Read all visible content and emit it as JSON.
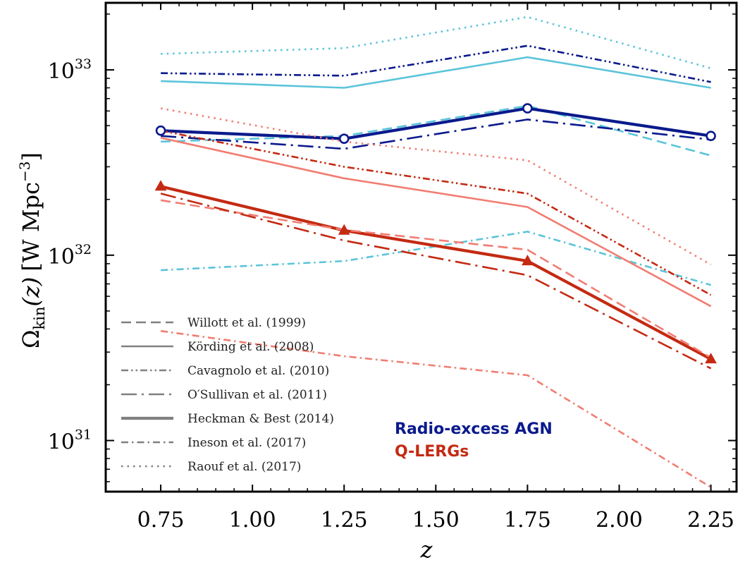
{
  "chart_data": {
    "type": "line",
    "xlabel": "z",
    "ylabel_main": "Ω",
    "ylabel_sub": "kin",
    "ylabel_arg": "(z)",
    "ylabel_units": "[W Mpc",
    "ylabel_exp": "−3",
    "ylabel_close": "]",
    "xlim": [
      0.6,
      2.32
    ],
    "ylim": [
      5.3e+30,
      2.3e+33
    ],
    "yscale": "log",
    "x": [
      0.75,
      1.25,
      1.75,
      2.25
    ],
    "x_ticks": [
      {
        "v": 0.75,
        "label": "0.75"
      },
      {
        "v": 1.0,
        "label": "1.00"
      },
      {
        "v": 1.25,
        "label": "1.25"
      },
      {
        "v": 1.5,
        "label": "1.50"
      },
      {
        "v": 1.75,
        "label": "1.75"
      },
      {
        "v": 2.0,
        "label": "2.00"
      },
      {
        "v": 2.25,
        "label": "2.25"
      }
    ],
    "y_ticks": [
      {
        "v": 1e+31,
        "base": "10",
        "exp": "31"
      },
      {
        "v": 1e+32,
        "base": "10",
        "exp": "32"
      },
      {
        "v": 1e+33,
        "base": "10",
        "exp": "33"
      }
    ],
    "colors": {
      "rae_dark": "#0a1a8c",
      "rae_light": "#5bc4d9",
      "qlerg_dark": "#c42a12",
      "qlerg_light": "#f17d72",
      "legend_gray": "#808080"
    },
    "legend": [
      {
        "label": "Willott et al. (1999)",
        "dash": "dashed",
        "width": "thin"
      },
      {
        "label": "Körding et al. (2008)",
        "dash": "solid",
        "width": "thin"
      },
      {
        "label": "Cavagnolo et al. (2010)",
        "dash": "dashdotdot",
        "width": "thin"
      },
      {
        "label": "O′Sullivan et al. (2011)",
        "dash": "longdashdot",
        "width": "thin"
      },
      {
        "label": "Heckman & Best (2014)",
        "dash": "solid",
        "width": "thick"
      },
      {
        "label": "Ineson et al. (2017)",
        "dash": "dashdot",
        "width": "thin"
      },
      {
        "label": "Raouf et al. (2017)",
        "dash": "dotted",
        "width": "thin"
      }
    ],
    "group_labels": [
      {
        "text": "Radio-excess AGN",
        "color": "#0a1a8c"
      },
      {
        "text": "Q-LERGs",
        "color": "#c42a12"
      }
    ],
    "series": [
      {
        "group": "RAE",
        "model": "Raouf et al. (2017)",
        "color": "#5bc4d9",
        "dash": "dotted",
        "width": "thin",
        "values": [
          1.22e+33,
          1.31e+33,
          1.93e+33,
          1.02e+33
        ]
      },
      {
        "group": "RAE",
        "model": "Cavagnolo et al. (2010)",
        "color": "#0a1a8c",
        "dash": "dashdotdot",
        "width": "thin",
        "values": [
          9.6e+32,
          9.3e+32,
          1.35e+33,
          8.6e+32
        ]
      },
      {
        "group": "RAE",
        "model": "Körding et al. (2008)",
        "color": "#5bc4d9",
        "dash": "solid",
        "width": "thin",
        "values": [
          8.7e+32,
          8e+32,
          1.17e+33,
          8e+32
        ]
      },
      {
        "group": "RAE",
        "model": "Willott et al. (1999)",
        "color": "#5bc4d9",
        "dash": "dashed",
        "width": "thin",
        "values": [
          4.1e+32,
          4.4e+32,
          6.4e+32,
          3.45e+32
        ]
      },
      {
        "group": "RAE",
        "model": "O′Sullivan et al. (2011)",
        "color": "#0a1a8c",
        "dash": "longdashdot",
        "width": "thin",
        "values": [
          4.4e+32,
          3.75e+32,
          5.4e+32,
          4.2e+32
        ]
      },
      {
        "group": "RAE",
        "model": "Heckman & Best (2014)",
        "color": "#0a1a8c",
        "dash": "solid",
        "width": "thick",
        "marker": "circle",
        "values": [
          4.7e+32,
          4.25e+32,
          6.2e+32,
          4.4e+32
        ]
      },
      {
        "group": "RAE",
        "model": "Ineson et al. (2017)",
        "color": "#5bc4d9",
        "dash": "dashdot",
        "width": "thin",
        "values": [
          8.3e+31,
          9.3e+31,
          1.34e+32,
          6.9e+31
        ]
      },
      {
        "group": "QLERG",
        "model": "Raouf et al. (2017)",
        "color": "#f17d72",
        "dash": "dotted",
        "width": "thin",
        "values": [
          6.2e+32,
          4.1e+32,
          3.25e+32,
          8.9e+31
        ]
      },
      {
        "group": "QLERG",
        "model": "Cavagnolo et al. (2010)",
        "color": "#c42a12",
        "dash": "dashdotdot",
        "width": "thin",
        "values": [
          4.7e+32,
          3e+32,
          2.15e+32,
          6.1e+31
        ]
      },
      {
        "group": "QLERG",
        "model": "Körding et al. (2008)",
        "color": "#f17d72",
        "dash": "solid",
        "width": "thin",
        "values": [
          4.3e+32,
          2.6e+32,
          1.82e+32,
          5.3e+31
        ]
      },
      {
        "group": "QLERG",
        "model": "Heckman & Best (2014)",
        "color": "#c42a12",
        "dash": "solid",
        "width": "thick",
        "marker": "triangle",
        "values": [
          2.35e+32,
          1.36e+32,
          9.3e+31,
          2.75e+31
        ]
      },
      {
        "group": "QLERG",
        "model": "Willott et al. (1999)",
        "color": "#f17d72",
        "dash": "dashed",
        "width": "thin",
        "values": [
          1.98e+32,
          1.37e+32,
          1.07e+32,
          2.8e+31
        ]
      },
      {
        "group": "QLERG",
        "model": "O′Sullivan et al. (2011)",
        "color": "#c42a12",
        "dash": "longdashdot",
        "width": "thin",
        "values": [
          2.15e+32,
          1.2e+32,
          7.8e+31,
          2.45e+31
        ]
      },
      {
        "group": "QLERG",
        "model": "Ineson et al. (2017)",
        "color": "#f17d72",
        "dash": "dashdot",
        "width": "thin",
        "values": [
          3.9e+31,
          2.85e+31,
          2.25e+31,
          5.6e+30
        ]
      }
    ]
  }
}
